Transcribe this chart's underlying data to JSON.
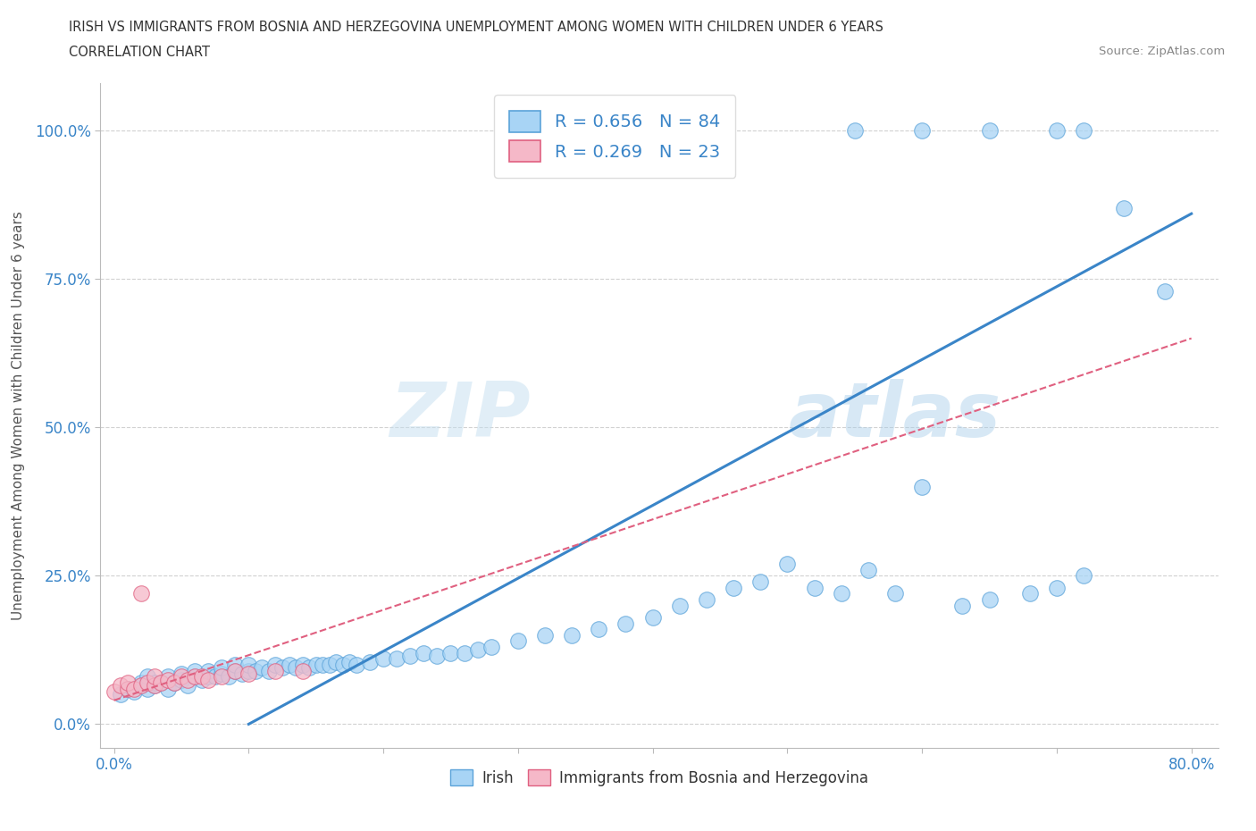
{
  "title_line1": "IRISH VS IMMIGRANTS FROM BOSNIA AND HERZEGOVINA UNEMPLOYMENT AMONG WOMEN WITH CHILDREN UNDER 6 YEARS",
  "title_line2": "CORRELATION CHART",
  "source": "Source: ZipAtlas.com",
  "ylabel": "Unemployment Among Women with Children Under 6 years",
  "ytick_labels": [
    "0.0%",
    "25.0%",
    "50.0%",
    "75.0%",
    "100.0%"
  ],
  "ytick_values": [
    0.0,
    0.25,
    0.5,
    0.75,
    1.0
  ],
  "xtick_labels": [
    "0.0%",
    "",
    "",
    "",
    "",
    "",
    "",
    "",
    "80.0%"
  ],
  "xtick_values": [
    0.0,
    0.1,
    0.2,
    0.3,
    0.4,
    0.5,
    0.6,
    0.7,
    0.8
  ],
  "xlim": [
    -0.01,
    0.82
  ],
  "ylim": [
    -0.04,
    1.08
  ],
  "irish_R": 0.656,
  "irish_N": 84,
  "bosnia_R": 0.269,
  "bosnia_N": 23,
  "irish_color": "#A8D4F5",
  "irish_edge_color": "#5BA3D9",
  "irish_line_color": "#3A85C8",
  "bosnia_color": "#F5B8C8",
  "bosnia_edge_color": "#E06080",
  "bosnia_line_color": "#E06080",
  "legend_text_color": "#3A85C8",
  "watermark_color": "#C8E4F8",
  "watermark_text": "ZIPatlas",
  "irish_legend_label": "R = 0.656   N = 84",
  "bosnia_legend_label": "R = 0.269   N = 23",
  "bottom_legend_irish": "Irish",
  "bottom_legend_bosnia": "Immigrants from Bosnia and Herzegovina",
  "irish_x": [
    0.005,
    0.01,
    0.015,
    0.02,
    0.02,
    0.025,
    0.025,
    0.03,
    0.03,
    0.035,
    0.04,
    0.04,
    0.045,
    0.05,
    0.05,
    0.055,
    0.06,
    0.06,
    0.065,
    0.07,
    0.07,
    0.075,
    0.08,
    0.08,
    0.085,
    0.09,
    0.09,
    0.095,
    0.1,
    0.1,
    0.105,
    0.11,
    0.115,
    0.12,
    0.125,
    0.13,
    0.135,
    0.14,
    0.145,
    0.15,
    0.155,
    0.16,
    0.165,
    0.17,
    0.175,
    0.18,
    0.19,
    0.2,
    0.21,
    0.22,
    0.23,
    0.24,
    0.25,
    0.26,
    0.27,
    0.28,
    0.3,
    0.32,
    0.34,
    0.36,
    0.38,
    0.4,
    0.42,
    0.44,
    0.46,
    0.48,
    0.5,
    0.52,
    0.54,
    0.56,
    0.58,
    0.6,
    0.63,
    0.65,
    0.68,
    0.7,
    0.72,
    0.55,
    0.6,
    0.65,
    0.7,
    0.72,
    0.75,
    0.78
  ],
  "irish_y": [
    0.05,
    0.06,
    0.055,
    0.065,
    0.07,
    0.06,
    0.08,
    0.065,
    0.07,
    0.07,
    0.06,
    0.08,
    0.07,
    0.075,
    0.085,
    0.065,
    0.08,
    0.09,
    0.075,
    0.08,
    0.09,
    0.08,
    0.085,
    0.095,
    0.08,
    0.09,
    0.1,
    0.085,
    0.09,
    0.1,
    0.09,
    0.095,
    0.09,
    0.1,
    0.095,
    0.1,
    0.095,
    0.1,
    0.095,
    0.1,
    0.1,
    0.1,
    0.105,
    0.1,
    0.105,
    0.1,
    0.105,
    0.11,
    0.11,
    0.115,
    0.12,
    0.115,
    0.12,
    0.12,
    0.125,
    0.13,
    0.14,
    0.15,
    0.15,
    0.16,
    0.17,
    0.18,
    0.2,
    0.21,
    0.23,
    0.24,
    0.27,
    0.23,
    0.22,
    0.26,
    0.22,
    0.4,
    0.2,
    0.21,
    0.22,
    0.23,
    0.25,
    1.0,
    1.0,
    1.0,
    1.0,
    1.0,
    0.87,
    0.73
  ],
  "bosnia_x": [
    0.0,
    0.005,
    0.01,
    0.01,
    0.015,
    0.02,
    0.02,
    0.025,
    0.03,
    0.03,
    0.035,
    0.04,
    0.045,
    0.05,
    0.055,
    0.06,
    0.065,
    0.07,
    0.08,
    0.09,
    0.1,
    0.12,
    0.14
  ],
  "bosnia_y": [
    0.055,
    0.065,
    0.06,
    0.07,
    0.06,
    0.065,
    0.22,
    0.07,
    0.065,
    0.08,
    0.07,
    0.075,
    0.07,
    0.08,
    0.075,
    0.08,
    0.08,
    0.075,
    0.08,
    0.09,
    0.085,
    0.09,
    0.09
  ],
  "irish_line_x": [
    0.1,
    0.8
  ],
  "irish_line_y": [
    0.0,
    0.86
  ],
  "bosnia_line_x": [
    0.0,
    0.8
  ],
  "bosnia_line_y": [
    0.04,
    0.65
  ]
}
